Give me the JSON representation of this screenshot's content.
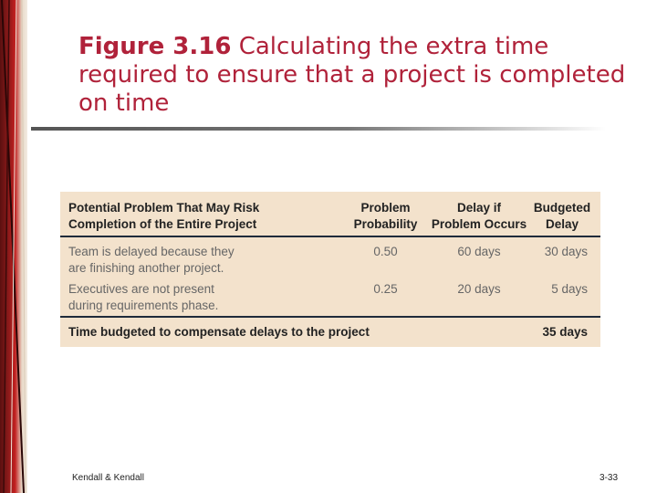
{
  "slide": {
    "title_figure": "Figure 3.16",
    "title_text": " Calculating the extra time required to ensure that a project is completed on time"
  },
  "table": {
    "headers": {
      "problem": [
        "Potential Problem That May Risk",
        "Completion of the Entire Project"
      ],
      "probability": [
        "Problem",
        "Probability"
      ],
      "delay": [
        "Delay if",
        "Problem Occurs"
      ],
      "budgeted": [
        "Budgeted",
        "Delay"
      ]
    },
    "rows": [
      {
        "problem": [
          "Team is delayed because they",
          "are finishing another project."
        ],
        "probability": "0.50",
        "delay": "60 days",
        "budgeted": "30 days"
      },
      {
        "problem": [
          "Executives are not present",
          "during requirements phase."
        ],
        "probability": "0.25",
        "delay": "20 days",
        "budgeted": "5 days"
      }
    ],
    "total": {
      "label": "Time budgeted to compensate delays to the project",
      "value": "35 days"
    }
  },
  "footer": {
    "author": "Kendall & Kendall",
    "page": "3-33"
  },
  "colors": {
    "title": "#b0223a",
    "panel": "#f3e2cc",
    "rule_lines": "#1f2a3a"
  }
}
